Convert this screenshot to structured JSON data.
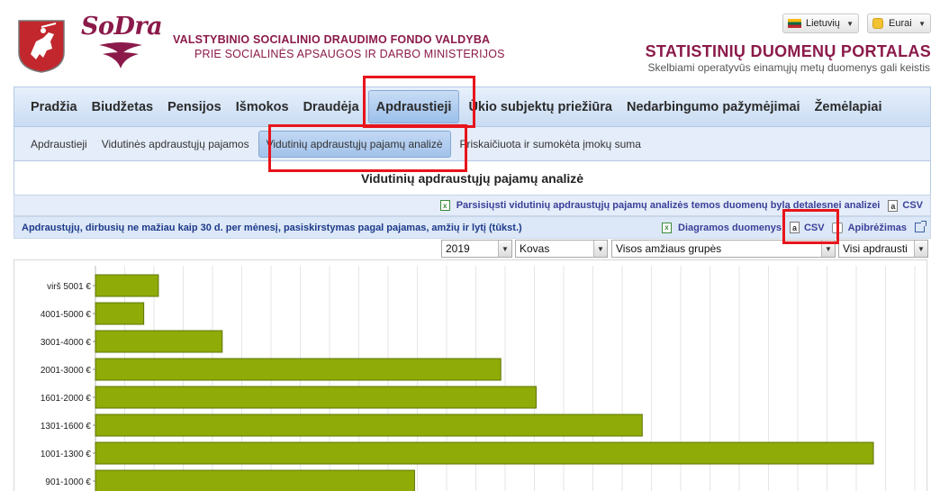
{
  "header": {
    "brand": "SoDra",
    "org_line1": "VALSTYBINIO SOCIALINIO DRAUDIMO FONDO VALDYBA",
    "org_line2": "PRIE SOCIALINĖS APSAUGOS IR DARBO MINISTERIJOS",
    "language": "Lietuvių",
    "currency": "Eurai",
    "portal_title": "STATISTINIŲ DUOMENŲ PORTALAS",
    "portal_subtitle": "Skelbiami operatyvūs einamųjų metų duomenys gali keistis"
  },
  "main_nav": [
    {
      "label": "Pradžia"
    },
    {
      "label": "Biudžetas"
    },
    {
      "label": "Pensijos"
    },
    {
      "label": "Išmokos"
    },
    {
      "label": "Draudėja"
    },
    {
      "label": "Apdraustieji",
      "active": true
    },
    {
      "label": "Ūkio subjektų priežiūra"
    },
    {
      "label": "Nedarbingumo pažymėjimai"
    },
    {
      "label": "Žemėlapiai"
    }
  ],
  "sub_nav": [
    {
      "label": "Apdraustieji"
    },
    {
      "label": "Vidutinės apdraustųjų pajamos"
    },
    {
      "label": "Vidutinių apdraustųjų pajamų analizė",
      "active": true
    },
    {
      "label": "Priskaičiuota ir sumokėta įmokų suma"
    }
  ],
  "content": {
    "heading": "Vidutinių apdraustųjų pajamų analizė",
    "download_link": "Parsisiųsti vidutinių apdraustųjų pajamų analizės temos duomenų bylą detalesnei analizei",
    "download_csv": "CSV",
    "chart_title": "Apdraustųjų, dirbusių ne mažiau kaip 30 d. per mėnesį, pasiskirstymas pagal pajamas, amžių ir lytį (tūkst.)",
    "chart_data_link": "Diagramos duomenys",
    "chart_csv": "CSV",
    "definition_link": "Apibrėžimas"
  },
  "filters": {
    "year": "2019",
    "month": "Kovas",
    "age_group": "Visos amžiaus grupės",
    "insured": "Visi apdrausti"
  },
  "colors": {
    "bar": "#8eab07",
    "accent": "#8b1a4a",
    "highlight": "#e8141b"
  },
  "chart_data": {
    "type": "bar",
    "orientation": "horizontal",
    "categories": [
      "virš 5001 €",
      "4001-5000 €",
      "3001-4000 €",
      "2001-3000 €",
      "1601-2000 €",
      "1301-1600 €",
      "1001-1300 €",
      "901-1000 €"
    ],
    "values": [
      7.3,
      5.6,
      14.7,
      47.0,
      51.1,
      63.4,
      90.2,
      37.0
    ],
    "xlim": [
      0,
      95
    ],
    "grid": true
  }
}
